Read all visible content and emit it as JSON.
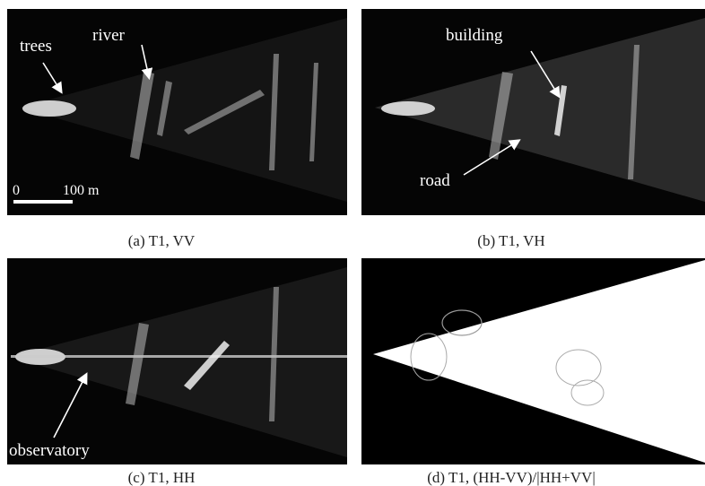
{
  "panels": [
    {
      "caption": "(a) T1, VV",
      "annotations": [
        "trees",
        "river"
      ],
      "scale_bar": {
        "start": "0",
        "end": "100 m"
      }
    },
    {
      "caption": "(b) T1, VH",
      "annotations": [
        "building",
        "road"
      ]
    },
    {
      "caption": "(c) T1, HH",
      "annotations": [
        "observatory"
      ]
    },
    {
      "caption": "(d) T1, (HH-VV)/|HH+VV|"
    }
  ]
}
